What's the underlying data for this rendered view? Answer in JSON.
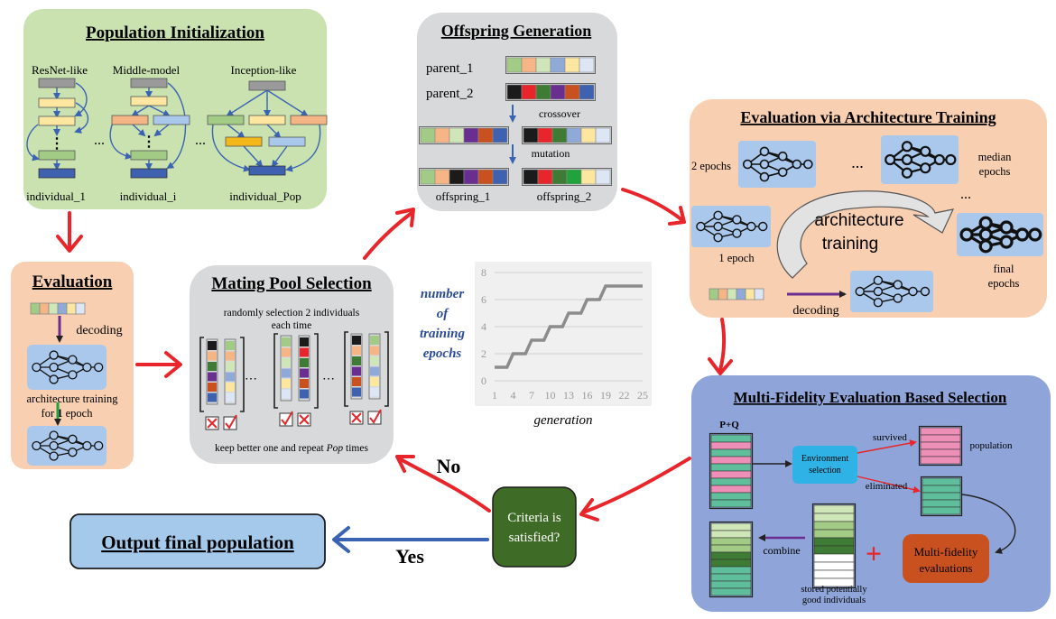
{
  "population_init": {
    "title": "Population Initialization",
    "resnet_label": "ResNet-like",
    "middle_label": "Middle-model",
    "inception_label": "Inception-like",
    "individual_1": "individual_1",
    "individual_i": "individual_i",
    "individual_pop": "individual_Pop",
    "ellipsis": "..."
  },
  "offspring": {
    "title": "Offspring Generation",
    "parent_1": "parent_1",
    "parent_2": "parent_2",
    "crossover": "crossover",
    "mutation": "mutation",
    "offspring_1": "offspring_1",
    "offspring_2": "offspring_2"
  },
  "arch_training": {
    "title": "Evaluation via Architecture Training",
    "two_epochs": "2 epochs",
    "median_epochs_1": "median",
    "median_epochs_2": "epochs",
    "one_epoch": "1 epoch",
    "final_epochs_1": "final",
    "final_epochs_2": "epochs",
    "center_1": "architecture",
    "center_2": "training",
    "decoding": "decoding",
    "ellipsis": "..."
  },
  "evaluation": {
    "title": "Evaluation",
    "decoding": "decoding",
    "training_1": "architecture training",
    "training_2_pre": "for ",
    "training_2_bold": "1",
    "training_2_post": " epoch"
  },
  "mating": {
    "title": "Mating Pool Selection",
    "line_1": "randomly selection 2 individuals",
    "line_2": "each time",
    "bottom_pre": "keep better one and repeat ",
    "bottom_italic": "Pop",
    "bottom_post": " times"
  },
  "chart_data": {
    "type": "line",
    "ylabel_lines": [
      "number",
      "of",
      "training",
      "epochs"
    ],
    "xlabel": "generation",
    "x_ticks": [
      "1",
      "4",
      "7",
      "10",
      "13",
      "16",
      "19",
      "22",
      "25"
    ],
    "y_ticks": [
      "0",
      "2",
      "4",
      "6",
      "8"
    ],
    "ylim": [
      0,
      8
    ],
    "xlim": [
      1,
      25
    ],
    "grid": true,
    "series": [
      {
        "x": [
          1,
          3,
          4,
          6,
          7,
          9,
          10,
          12,
          13,
          15,
          16,
          18,
          19,
          21,
          25
        ],
        "y": [
          1,
          1,
          2,
          2,
          3,
          3,
          4,
          4,
          5,
          5,
          6,
          6,
          7,
          7,
          7
        ]
      }
    ]
  },
  "multi_fidelity": {
    "title": "Multi-Fidelity Evaluation Based Selection",
    "pq": "P+Q",
    "env_1": "Environment",
    "env_2": "selection",
    "survived": "survived",
    "population": "population",
    "eliminated": "eliminated",
    "combine": "combine",
    "stored_1": "stored potentially",
    "stored_2": "good individuals",
    "mf_1": "Multi-fidelity",
    "mf_2": "evaluations",
    "plus": "+"
  },
  "criteria": {
    "line_1": "Criteria is",
    "line_2": "satisfied?"
  },
  "no_label": "No",
  "yes_label": "Yes",
  "output": {
    "label": "Output final population"
  },
  "colors": {
    "green_panel": "#c9e2b0",
    "orange_panel": "#f8cfb1",
    "gray_panel": "#d8d9da",
    "blue_panel": "#8fa5d9",
    "node_blue": "#a9c8ec",
    "red_arrow": "#e8252a",
    "blue_arrow": "#3b63b3",
    "criteria_green": "#3e6b26",
    "output_blue": "#a5c9ea",
    "mf_orange": "#c8511f",
    "env_cyan": "#2fb3e6"
  }
}
